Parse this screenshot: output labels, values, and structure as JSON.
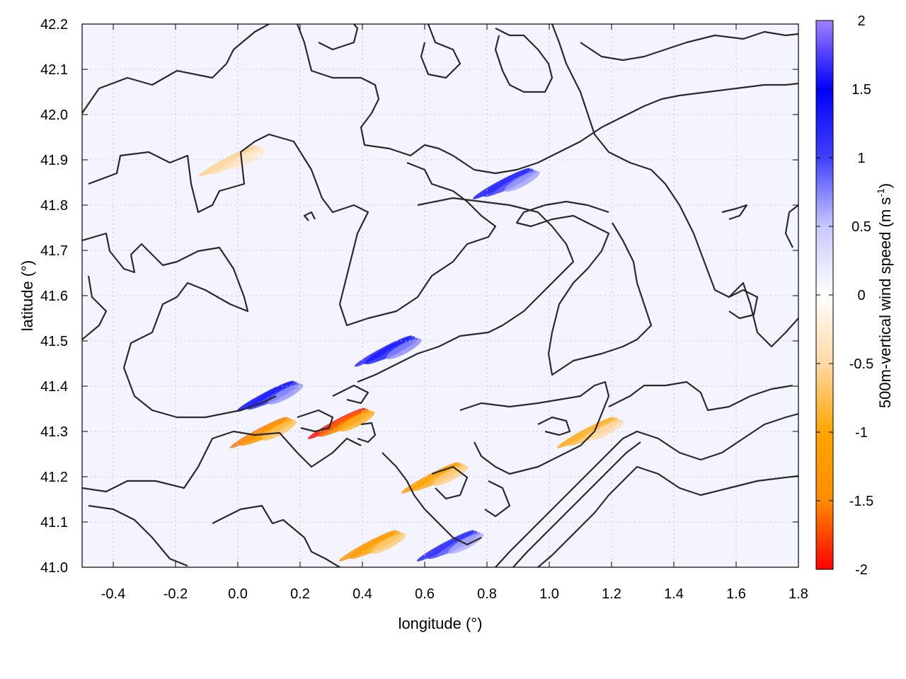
{
  "chart_data": {
    "type": "heatmap",
    "xlabel": "longitude (°)",
    "ylabel": "latitude (°)",
    "xlim": [
      -0.5,
      1.8
    ],
    "ylim": [
      41.0,
      42.2
    ],
    "x_ticks": [
      -0.4,
      -0.2,
      0.0,
      0.2,
      0.4,
      0.6,
      0.8,
      1.0,
      1.2,
      1.4,
      1.6,
      1.8
    ],
    "x_tick_labels": [
      "-0.4",
      "-0.2",
      "0.0",
      "0.2",
      "0.4",
      "0.6",
      "0.8",
      "1.0",
      "1.2",
      "1.4",
      "1.6",
      "1.8"
    ],
    "y_ticks": [
      41.0,
      41.1,
      41.2,
      41.3,
      41.4,
      41.5,
      41.6,
      41.7,
      41.8,
      41.9,
      42.0,
      42.1,
      42.2
    ],
    "y_tick_labels": [
      "41.0",
      "41.1",
      "41.2",
      "41.3",
      "41.4",
      "41.5",
      "41.6",
      "41.7",
      "41.8",
      "41.9",
      "42.0",
      "42.1",
      "42.2"
    ],
    "grid": true,
    "colorbar": {
      "label": "500m-vertical wind speed (m s",
      "label_sup": "-1",
      "label_end": ")",
      "range": [
        -2,
        2
      ],
      "ticks": [
        -2,
        -1.5,
        -1,
        -0.5,
        0,
        0.5,
        1,
        1.5,
        2
      ],
      "tick_labels": [
        "-2",
        "-1.5",
        "-1",
        "-0.5",
        "0",
        "0.5",
        "1",
        "1.5",
        "2"
      ],
      "colors": [
        "#ff0000",
        "#ff8c00",
        "#ffa500",
        "#ffd9a6",
        "#ffffff",
        "#c8c8ff",
        "#4040ff",
        "#0000ff",
        "#a080ff"
      ]
    },
    "features": [
      {
        "lon": 0.1,
        "lat": 41.3,
        "value": -1.6
      },
      {
        "lon": 0.35,
        "lat": 41.32,
        "value": -2.0
      },
      {
        "lon": 0.45,
        "lat": 41.05,
        "value": -1.4
      },
      {
        "lon": 0.65,
        "lat": 41.2,
        "value": -1.3
      },
      {
        "lon": 0.0,
        "lat": 41.9,
        "value": -0.6
      },
      {
        "lon": 0.5,
        "lat": 41.48,
        "value": 1.6
      },
      {
        "lon": 0.12,
        "lat": 41.38,
        "value": 1.5
      },
      {
        "lon": 0.88,
        "lat": 41.85,
        "value": 1.4
      },
      {
        "lon": 0.7,
        "lat": 41.05,
        "value": 1.3
      },
      {
        "lon": 1.15,
        "lat": 41.3,
        "value": -1.0
      }
    ]
  }
}
